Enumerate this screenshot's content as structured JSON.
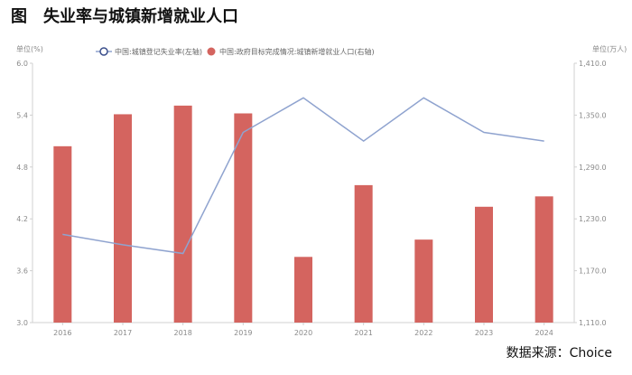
{
  "page": {
    "title": "图　失业率与城镇新增就业人口",
    "source": "数据来源：Choice"
  },
  "colors": {
    "bar": "#d4645f",
    "line": "#8fa3cf",
    "axis": "#d0d0d0",
    "text": "#8a8a8a"
  },
  "chart_data": {
    "type": "bar",
    "categories": [
      "2016",
      "2017",
      "2018",
      "2019",
      "2020",
      "2021",
      "2022",
      "2023",
      "2024"
    ],
    "left_axis": {
      "label": "单位(%)",
      "ylim": [
        3.0,
        6.0
      ],
      "ticks": [
        "6.0",
        "5.4",
        "4.8",
        "4.2",
        "3.6",
        "3.0"
      ]
    },
    "right_axis": {
      "label": "单位(万人)",
      "ylim": [
        1110,
        1410
      ],
      "ticks": [
        "1,410.0",
        "1,350.0",
        "1,290.0",
        "1,230.0",
        "1,170.0",
        "1,110.0"
      ]
    },
    "series": [
      {
        "name": "中国:城镇登记失业率(左轴)",
        "type": "line",
        "axis": "left",
        "values": [
          4.02,
          3.9,
          3.8,
          5.2,
          5.6,
          5.1,
          5.6,
          5.2,
          5.1
        ]
      },
      {
        "name": "中国:政府目标完成情况:城镇新增就业人口(右轴)",
        "type": "bar",
        "axis": "right",
        "values": [
          1314,
          1351,
          1361,
          1352,
          1186,
          1269,
          1206,
          1244,
          1256
        ]
      }
    ],
    "legend_position": "top",
    "grid": false
  }
}
